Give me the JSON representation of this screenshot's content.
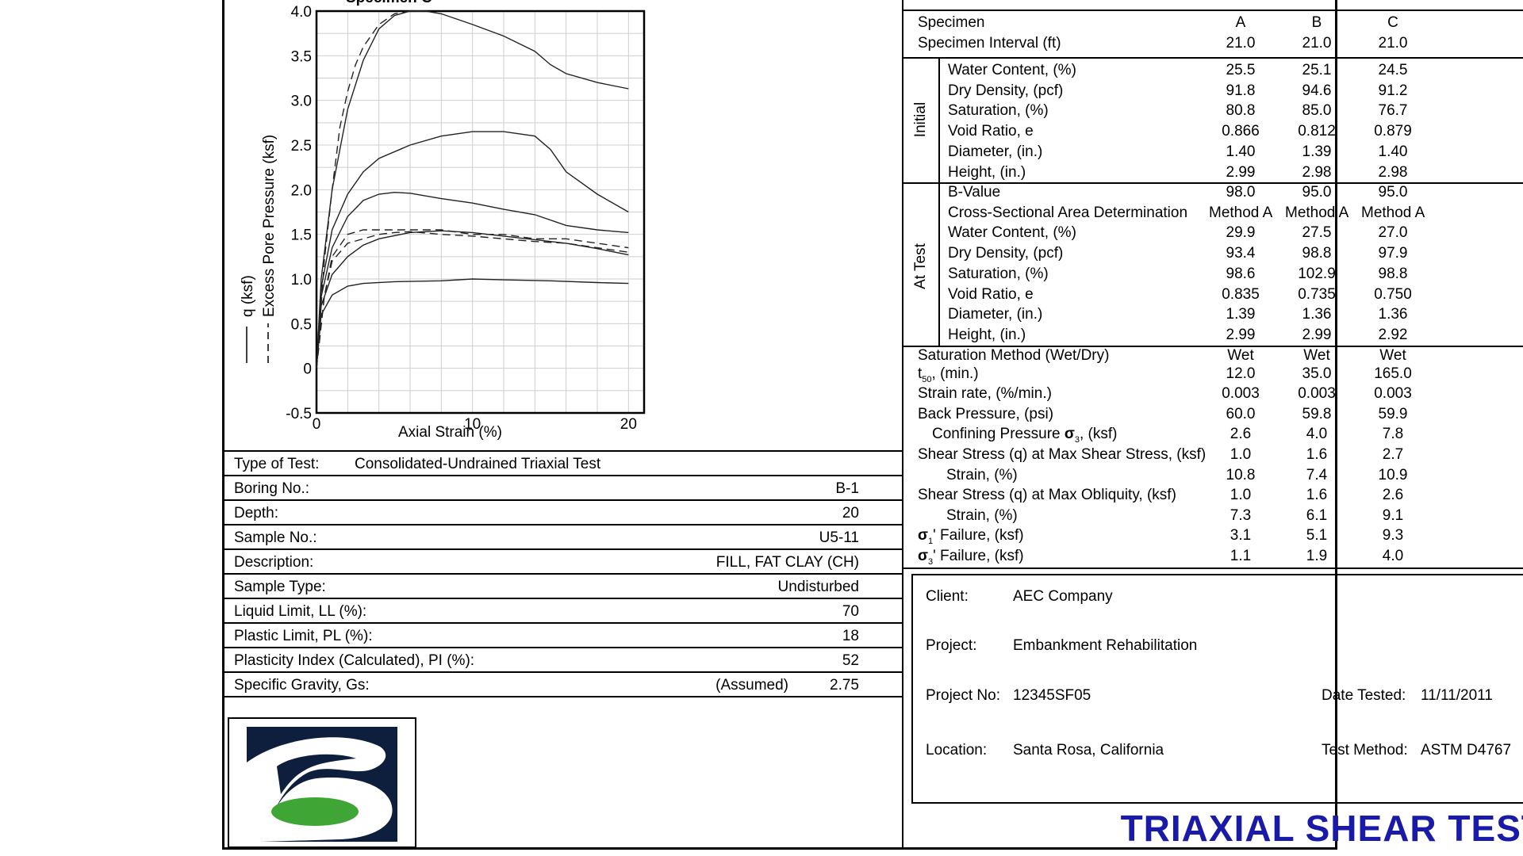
{
  "plot": {
    "title": "Specimen C",
    "y_ticks": [
      "4.0",
      "3.5",
      "3.0",
      "2.5",
      "2.0",
      "1.5",
      "1.0",
      "0.5",
      "0",
      "-0.5"
    ],
    "x_ticks": [
      "0",
      "10",
      "20"
    ],
    "xlabel": "Axial Strain (%)",
    "ylabel_q": "q (ksf)",
    "ylabel_pore": "Excess Pore Pressure (ksf)"
  },
  "chart_data": {
    "type": "line",
    "xlabel": "Axial Strain (%)",
    "ylabel": "q (ksf) / Excess Pore Pressure (ksf)",
    "xlim": [
      0,
      21
    ],
    "ylim": [
      -0.5,
      4.0
    ],
    "grid": true,
    "series": [
      {
        "style": "solid",
        "x": [
          0,
          0.3,
          1,
          2,
          3,
          5,
          8,
          10,
          12,
          15,
          18,
          20
        ],
        "y": [
          0,
          0.6,
          0.82,
          0.92,
          0.95,
          0.97,
          0.98,
          1.0,
          0.99,
          0.98,
          0.96,
          0.95
        ]
      },
      {
        "style": "solid",
        "x": [
          0,
          0.3,
          1,
          2,
          3,
          4,
          6,
          8,
          10,
          12,
          14,
          16,
          18,
          20
        ],
        "y": [
          0,
          0.7,
          1.05,
          1.25,
          1.38,
          1.45,
          1.52,
          1.54,
          1.52,
          1.48,
          1.44,
          1.4,
          1.34,
          1.27
        ]
      },
      {
        "style": "solid",
        "x": [
          0,
          0.3,
          1,
          2,
          3,
          4,
          5,
          6,
          8,
          10,
          12,
          14,
          16,
          18,
          20
        ],
        "y": [
          0,
          0.8,
          1.35,
          1.7,
          1.88,
          1.95,
          1.97,
          1.96,
          1.9,
          1.85,
          1.78,
          1.72,
          1.6,
          1.55,
          1.52
        ]
      },
      {
        "style": "solid",
        "x": [
          0,
          0.3,
          1,
          2,
          3,
          4,
          6,
          8,
          10,
          12,
          14,
          15,
          16,
          18,
          20
        ],
        "y": [
          0,
          0.9,
          1.55,
          1.95,
          2.2,
          2.35,
          2.5,
          2.6,
          2.65,
          2.65,
          2.6,
          2.45,
          2.2,
          1.95,
          1.75
        ]
      },
      {
        "style": "solid",
        "x": [
          0,
          0.3,
          1,
          2,
          3,
          4,
          5,
          6,
          7,
          8,
          10,
          12,
          14,
          15,
          16,
          18,
          20
        ],
        "y": [
          0,
          1.0,
          2.0,
          2.9,
          3.45,
          3.8,
          3.95,
          4.0,
          4.0,
          3.97,
          3.85,
          3.72,
          3.55,
          3.4,
          3.3,
          3.2,
          3.13
        ]
      },
      {
        "style": "dashed",
        "x": [
          0,
          0.5,
          1,
          2,
          3,
          4,
          5,
          6,
          8,
          10,
          12,
          14,
          16,
          18,
          20
        ],
        "y": [
          0,
          0.8,
          1.2,
          1.4,
          1.45,
          1.5,
          1.52,
          1.53,
          1.5,
          1.48,
          1.45,
          1.42,
          1.4,
          1.35,
          1.3
        ]
      },
      {
        "style": "dashed",
        "x": [
          0,
          0.5,
          1,
          2,
          3,
          4,
          5,
          6,
          8,
          10,
          12,
          14,
          16,
          18,
          20
        ],
        "y": [
          0,
          0.8,
          1.25,
          1.5,
          1.55,
          1.55,
          1.55,
          1.55,
          1.55,
          1.5,
          1.5,
          1.45,
          1.45,
          1.4,
          1.35
        ]
      },
      {
        "style": "dashed",
        "x": [
          0,
          0.5,
          1,
          1.5,
          2,
          2.5,
          3,
          4,
          5,
          6,
          7
        ],
        "y": [
          0,
          1.2,
          2.0,
          2.7,
          3.1,
          3.4,
          3.6,
          3.85,
          3.97,
          4.0,
          4.0
        ]
      }
    ]
  },
  "info": [
    {
      "label": "Type of Test:",
      "value": "Consolidated-Undrained Triaxial Test"
    },
    {
      "label": "Boring No.:",
      "value": "B-1"
    },
    {
      "label": "Depth:",
      "value": "20"
    },
    {
      "label": "Sample No.:",
      "value": "U5-11"
    },
    {
      "label": "Description:",
      "value": "FILL, FAT CLAY (CH)"
    },
    {
      "label": "Sample Type:",
      "value": "Undisturbed"
    },
    {
      "label": "Liquid Limit, LL (%):",
      "value": "70"
    },
    {
      "label": "Plastic Limit, PL (%):",
      "value": "18"
    },
    {
      "label": "Plasticity Index (Calculated), PI (%):",
      "value": "52"
    },
    {
      "label": "Specific Gravity, Gs:",
      "note": "(Assumed)",
      "value": "2.75"
    }
  ],
  "specimens": {
    "header": {
      "label": "Specimen",
      "a": "A",
      "b": "B",
      "c": "C"
    },
    "interval": {
      "label": "Specimen Interval (ft)",
      "a": "21.0",
      "b": "21.0",
      "c": "21.0"
    }
  },
  "initial_label": "Initial",
  "initial": [
    {
      "label": "Water Content, (%)",
      "a": "25.5",
      "b": "25.1",
      "c": "24.5"
    },
    {
      "label": "Dry Density, (pcf)",
      "a": "91.8",
      "b": "94.6",
      "c": "91.2"
    },
    {
      "label": "Saturation, (%)",
      "a": "80.8",
      "b": "85.0",
      "c": "76.7"
    },
    {
      "label": "Void Ratio, e",
      "a": "0.866",
      "b": "0.812",
      "c": "0.879"
    },
    {
      "label": "Diameter, (in.)",
      "a": "1.40",
      "b": "1.39",
      "c": "1.40"
    },
    {
      "label": "Height, (in.)",
      "a": "2.99",
      "b": "2.98",
      "c": "2.98"
    }
  ],
  "at_test_label": "At Test",
  "at_test": [
    {
      "label": "B-Value",
      "a": "98.0",
      "b": "95.0",
      "c": "95.0"
    },
    {
      "label": "Cross-Sectional Area Determination",
      "a": "Method A",
      "b": "Method A",
      "c": "Method A"
    },
    {
      "label": "Water Content, (%)",
      "a": "29.9",
      "b": "27.5",
      "c": "27.0"
    },
    {
      "label": "Dry Density, (pcf)",
      "a": "93.4",
      "b": "98.8",
      "c": "97.9"
    },
    {
      "label": "Saturation, (%)",
      "a": "98.6",
      "b": "102.9",
      "c": "98.8"
    },
    {
      "label": "Void Ratio, e",
      "a": "0.835",
      "b": "0.735",
      "c": "0.750"
    },
    {
      "label": "Diameter, (in.)",
      "a": "1.39",
      "b": "1.36",
      "c": "1.36"
    },
    {
      "label": "Height, (in.)",
      "a": "2.99",
      "b": "2.99",
      "c": "2.92"
    }
  ],
  "test_params": {
    "saturation_method": {
      "label": "Saturation Method (Wet/Dry)",
      "a": "Wet",
      "b": "Wet",
      "c": "Wet"
    },
    "t50": {
      "label_t": "t",
      "label_sub": "50",
      "label_rest": ", (min.)",
      "a": "12.0",
      "b": "35.0",
      "c": "165.0"
    },
    "strain_rate": {
      "label": "Strain rate, (%/min.)",
      "a": "0.003",
      "b": "0.003",
      "c": "0.003"
    },
    "back_pressure": {
      "label": "Back Pressure, (psi)",
      "a": "60.0",
      "b": "59.8",
      "c": "59.9"
    },
    "confining": {
      "label_pre": "Confining Pressure ",
      "label_sym": "σ",
      "label_sub": "3",
      "label_rest": ", (ksf)",
      "a": "2.6",
      "b": "4.0",
      "c": "7.8"
    },
    "shear_max_stress": {
      "label": "Shear Stress (q) at Max Shear Stress, (ksf)",
      "a": "1.0",
      "b": "1.6",
      "c": "2.7"
    },
    "strain_1": {
      "label": "Strain, (%)",
      "a": "10.8",
      "b": "7.4",
      "c": "10.9"
    },
    "shear_max_obliquity": {
      "label": "Shear Stress (q) at Max Obliquity, (ksf)",
      "a": "1.0",
      "b": "1.6",
      "c": "2.6"
    },
    "strain_2": {
      "label": "Strain, (%)",
      "a": "7.3",
      "b": "6.1",
      "c": "9.1"
    },
    "sigma1": {
      "label_sym": "σ",
      "label_sub": "1",
      "label_rest": "' Failure, (ksf)",
      "a": "3.1",
      "b": "5.1",
      "c": "9.3"
    },
    "sigma3": {
      "label_sym": "σ",
      "label_sub": "3",
      "label_rest": "' Failure, (ksf)",
      "a": "1.1",
      "b": "1.9",
      "c": "4.0"
    }
  },
  "client": {
    "client_label": "Client:",
    "client_value": "AEC Company",
    "project_label": "Project:",
    "project_value": "Embankment Rehabilitation",
    "project_no_label": "Project No:",
    "project_no_value": "12345SF05",
    "date_label": "Date Tested:",
    "date_value": "11/11/2011",
    "location_label": "Location:",
    "location_value": "Santa Rosa, California",
    "method_label": "Test Method:",
    "method_value": "ASTM D4767"
  },
  "report_title": "TRIAXIAL SHEAR TEST",
  "colors": {
    "title": "#1a1aa8",
    "logo_bg": "#0d1f3c",
    "logo_green": "#3fa535"
  }
}
